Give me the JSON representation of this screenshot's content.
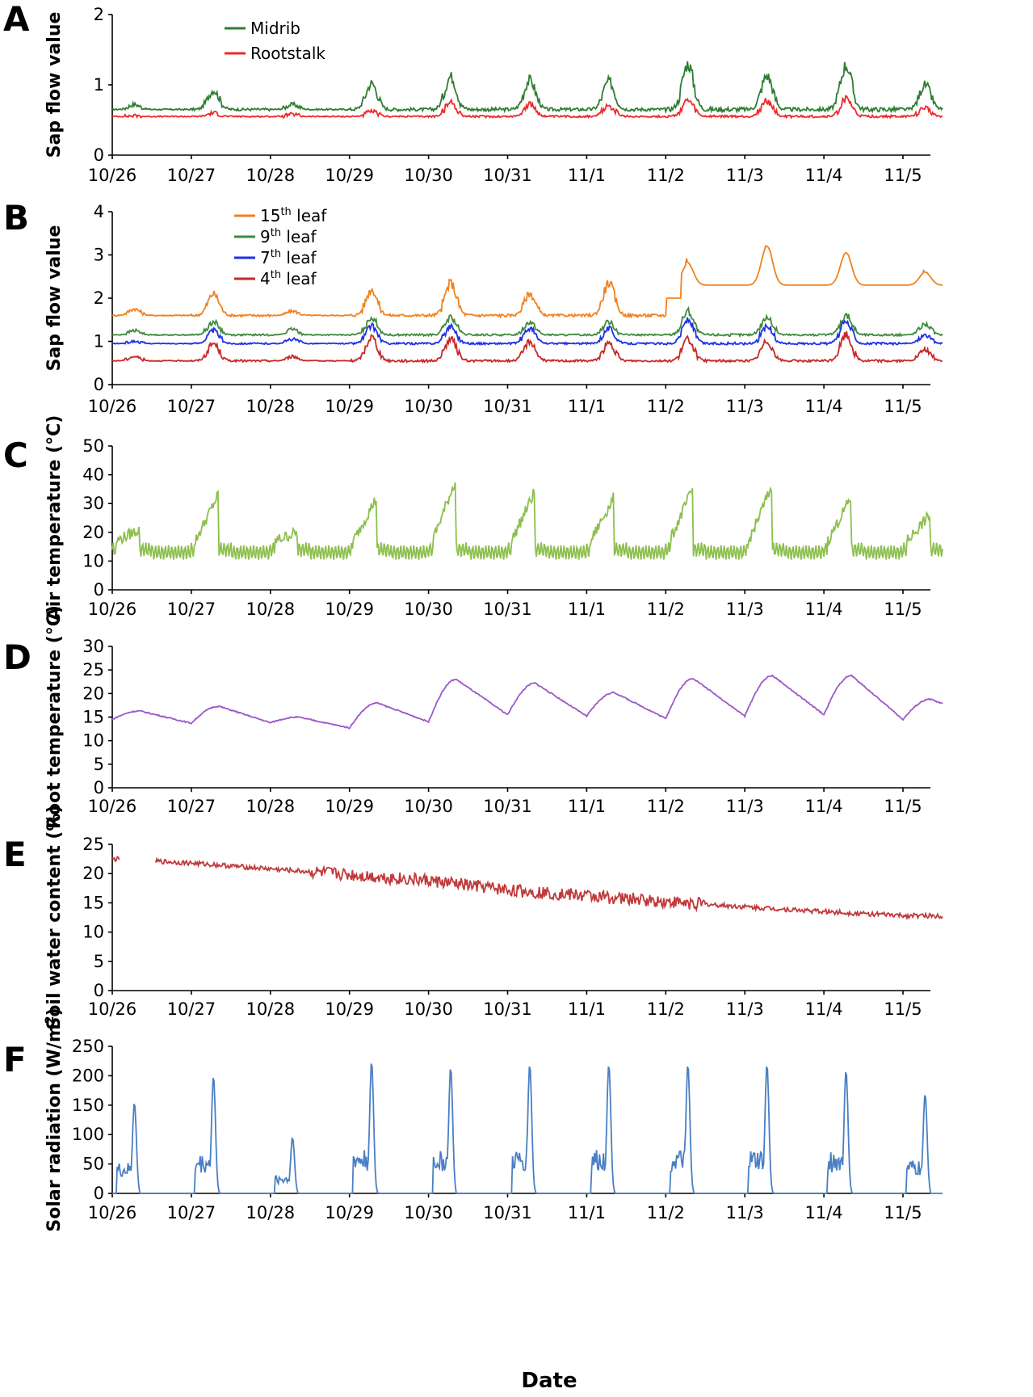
{
  "figure": {
    "xlabel": "Date",
    "dates": [
      "10/26",
      "10/27",
      "10/28",
      "10/29",
      "10/30",
      "10/31",
      "11/1",
      "11/2",
      "11/3",
      "11/4",
      "11/5"
    ]
  },
  "chart_data": [
    {
      "panel": "A",
      "type": "line",
      "ylabel": "Sap flow value",
      "ylim": [
        0,
        2
      ],
      "yticks": [
        0,
        1,
        2
      ],
      "x": [
        "10/26",
        "10/27",
        "10/28",
        "10/29",
        "10/30",
        "10/31",
        "11/1",
        "11/2",
        "11/3",
        "11/4",
        "11/5"
      ],
      "legend_position": "top-left",
      "series": [
        {
          "name": "Midrib",
          "color": "#2e7d32",
          "base": 0.65,
          "peaks": [
            0.72,
            0.92,
            0.72,
            1.02,
            1.12,
            1.07,
            1.05,
            1.3,
            1.13,
            1.28,
            1.0
          ]
        },
        {
          "name": "Rootstalk",
          "color": "#ee2a2a",
          "base": 0.55,
          "peaks": [
            0.56,
            0.6,
            0.58,
            0.62,
            0.75,
            0.72,
            0.7,
            0.77,
            0.77,
            0.8,
            0.67
          ]
        }
      ]
    },
    {
      "panel": "B",
      "type": "line",
      "ylabel": "Sap flow value",
      "ylim": [
        0,
        4
      ],
      "yticks": [
        0,
        1,
        2,
        3,
        4
      ],
      "x": [
        "10/26",
        "10/27",
        "10/28",
        "10/29",
        "10/30",
        "10/31",
        "11/1",
        "11/2",
        "11/3",
        "11/4",
        "11/5"
      ],
      "legend_position": "top-left",
      "series": [
        {
          "name": "15th leaf",
          "name_base": "15",
          "name_sup": "th",
          "name_rest": " leaf",
          "color": "#f0821e",
          "base": 1.6,
          "peaks": [
            1.75,
            2.1,
            1.7,
            2.2,
            2.35,
            2.1,
            2.35,
            2.8,
            3.2,
            3.05,
            2.6
          ]
        },
        {
          "name": "9th leaf",
          "name_base": "9",
          "name_sup": "th",
          "name_rest": " leaf",
          "color": "#3f8a3f",
          "base": 1.15,
          "peaks": [
            1.25,
            1.45,
            1.28,
            1.55,
            1.55,
            1.45,
            1.45,
            1.7,
            1.55,
            1.6,
            1.4
          ]
        },
        {
          "name": "7th leaf",
          "name_base": "7",
          "name_sup": "th",
          "name_rest": " leaf",
          "color": "#1f2fe8",
          "base": 0.95,
          "peaks": [
            1.0,
            1.25,
            1.05,
            1.35,
            1.35,
            1.3,
            1.3,
            1.5,
            1.35,
            1.45,
            1.15
          ]
        },
        {
          "name": "4th leaf",
          "name_base": "4",
          "name_sup": "th",
          "name_rest": " leaf",
          "color": "#c8282a",
          "base": 0.55,
          "peaks": [
            0.65,
            0.95,
            0.65,
            1.1,
            1.05,
            1.0,
            0.95,
            1.05,
            1.0,
            1.15,
            0.8
          ]
        }
      ]
    },
    {
      "panel": "C",
      "type": "line",
      "ylabel": "Air temperature (°C)",
      "ylim": [
        0,
        50
      ],
      "yticks": [
        0,
        10,
        20,
        30,
        40,
        50
      ],
      "x": [
        "10/26",
        "10/27",
        "10/28",
        "10/29",
        "10/30",
        "10/31",
        "11/1",
        "11/2",
        "11/3",
        "11/4",
        "11/5"
      ],
      "series": [
        {
          "color": "#8dbf4e",
          "base": 14,
          "peaks": [
            21,
            33,
            20,
            32,
            38,
            34,
            32,
            35,
            36,
            32,
            26
          ]
        }
      ]
    },
    {
      "panel": "D",
      "type": "line",
      "ylabel": "Root temperature (°C)",
      "ylim": [
        0,
        30
      ],
      "yticks": [
        0,
        5,
        10,
        15,
        20,
        25,
        30
      ],
      "x": [
        "10/26",
        "10/27",
        "10/28",
        "10/29",
        "10/30",
        "10/31",
        "11/1",
        "11/2",
        "11/3",
        "11/4",
        "11/5"
      ],
      "series": [
        {
          "color": "#9b59c9",
          "mins": [
            14.5,
            13.7,
            13.8,
            12.7,
            14.0,
            15.5,
            15.2,
            14.7,
            15.2,
            15.5,
            14.5
          ],
          "peaks": [
            16.3,
            17.3,
            15.0,
            18.0,
            23.0,
            22.2,
            20.2,
            23.2,
            23.8,
            23.8,
            18.8
          ]
        }
      ]
    },
    {
      "panel": "E",
      "type": "line",
      "ylabel": "Soil water content (%)",
      "ylim": [
        0,
        25
      ],
      "yticks": [
        0,
        5,
        10,
        15,
        20,
        25
      ],
      "x": [
        "10/26",
        "10/27",
        "10/28",
        "10/29",
        "10/30",
        "10/31",
        "11/1",
        "11/2",
        "11/3",
        "11/4",
        "11/5"
      ],
      "series": [
        {
          "color": "#c0393b",
          "values": [
            22.5,
            21.8,
            20.8,
            19.8,
            18.8,
            17.2,
            16.2,
            15.2,
            14.3,
            13.5,
            12.8
          ]
        }
      ]
    },
    {
      "panel": "F",
      "type": "line",
      "ylabel": "Solar radiation (W/m²)",
      "ylabel_main": "Solar radiation (W/m",
      "ylabel_sup": "2",
      "ylabel_end": ")",
      "ylim": [
        0,
        250
      ],
      "yticks": [
        0,
        50,
        100,
        150,
        200,
        250
      ],
      "x": [
        "10/26",
        "10/27",
        "10/28",
        "10/29",
        "10/30",
        "10/31",
        "11/1",
        "11/2",
        "11/3",
        "11/4",
        "11/5"
      ],
      "series": [
        {
          "color": "#4a7fc4",
          "peaks": [
            155,
            200,
            95,
            225,
            215,
            220,
            220,
            220,
            220,
            210,
            170
          ]
        }
      ]
    }
  ]
}
